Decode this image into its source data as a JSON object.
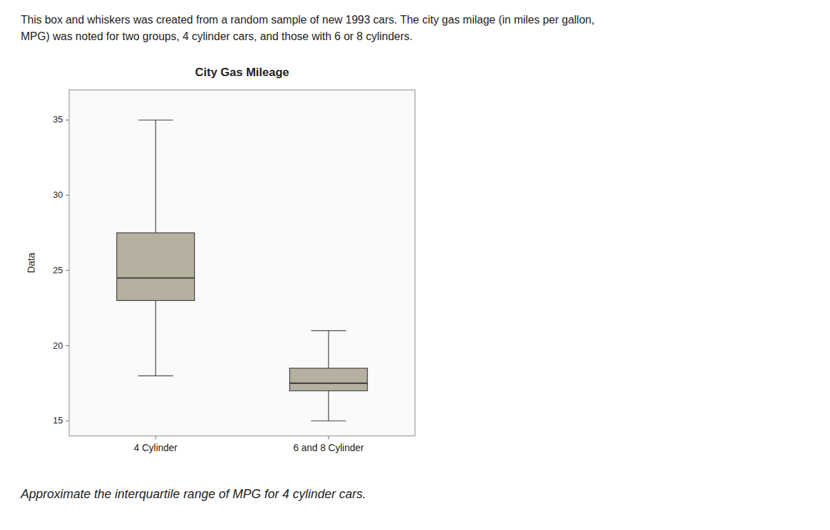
{
  "chart_data": {
    "type": "box",
    "title": "City Gas Mileage",
    "ylabel": "Data",
    "categories": [
      "4 Cylinder",
      "6 and 8 Cylinder"
    ],
    "values": [
      {
        "whisker_low": 18,
        "q1": 23,
        "median": 24.5,
        "q3": 27.5,
        "whisker_high": 35
      },
      {
        "whisker_low": 15,
        "q1": 17,
        "median": 17.5,
        "q3": 18.5,
        "whisker_high": 21
      }
    ],
    "color": "#b5b0a0",
    "ylim": [
      14,
      37
    ],
    "yticks": [
      15,
      20,
      25,
      30,
      35
    ],
    "grid": false,
    "annotations": [
      "This box and whiskers was created from a random sample of new 1993 cars. The city gas milage (in miles per gallon,",
      "MPG) was noted for two groups, 4 cylinder cars, and those with 6 or 8 cylinders.",
      "Approximate the interquartile range of MPG for 4 cylinder cars."
    ]
  }
}
